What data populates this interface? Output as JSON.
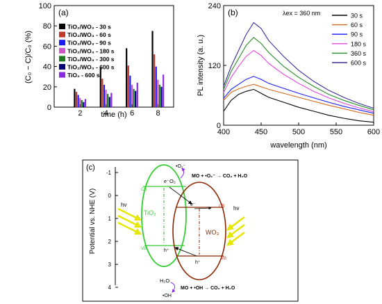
{
  "chart_data": [
    {
      "panel": "(a)",
      "type": "bar",
      "xlabel": "time (h)",
      "ylabel": "(C₀ − C)/C₀ (%)",
      "ylim": [
        0,
        100
      ],
      "categories": [
        "2",
        "4",
        "6",
        "8"
      ],
      "yticks": [
        "0",
        "20",
        "40",
        "60",
        "80",
        "100"
      ],
      "legend_position": "top-left",
      "series": [
        {
          "name": "TiO₂/WO₃ - 30 s",
          "color": "#000000",
          "values": [
            18,
            39,
            58,
            75
          ]
        },
        {
          "name": "TiO₂/WO₃ - 60 s",
          "color": "#c0392b",
          "values": [
            15,
            28,
            41,
            52
          ]
        },
        {
          "name": "TiO₂/WO₃ - 90 s",
          "color": "#1a1aff",
          "values": [
            12,
            22,
            31,
            40
          ]
        },
        {
          "name": "TiO₂/WO₃ - 180 s",
          "color": "#cc55cc",
          "values": [
            9,
            17,
            22,
            27
          ]
        },
        {
          "name": "TiO₂/WO₃ - 300 s",
          "color": "#1e7a1e",
          "values": [
            7,
            13,
            18,
            22
          ]
        },
        {
          "name": "TiO₂/WO₃ - 600 s",
          "color": "#00007a",
          "values": [
            5,
            10,
            16,
            20
          ]
        },
        {
          "name": "TiO₂ - 600 s",
          "color": "#8a2be2",
          "values": [
            8,
            14,
            24,
            32
          ]
        }
      ]
    },
    {
      "panel": "(b)",
      "type": "line",
      "xlabel": "wavelength (nm)",
      "ylabel": "PL intensity (a. u.)",
      "annotation": "λex = 360 nm",
      "xlim": [
        400,
        600
      ],
      "ylim": [
        0,
        240
      ],
      "xticks": [
        "400",
        "450",
        "500",
        "550",
        "600"
      ],
      "yticks": [
        "0",
        "120",
        "240"
      ],
      "legend_position": "top-right",
      "series": [
        {
          "name": "30 s",
          "color": "#000000",
          "points": [
            [
              400,
              28
            ],
            [
              410,
              50
            ],
            [
              420,
              62
            ],
            [
              430,
              68
            ],
            [
              440,
              72
            ],
            [
              450,
              64
            ],
            [
              460,
              56
            ],
            [
              480,
              46
            ],
            [
              500,
              36
            ],
            [
              520,
              28
            ],
            [
              540,
              20
            ],
            [
              560,
              14
            ],
            [
              580,
              9
            ],
            [
              600,
              6
            ]
          ]
        },
        {
          "name": "60 s",
          "color": "#d2691e",
          "points": [
            [
              400,
              50
            ],
            [
              410,
              66
            ],
            [
              420,
              73
            ],
            [
              430,
              78
            ],
            [
              440,
              82
            ],
            [
              450,
              77
            ],
            [
              460,
              72
            ],
            [
              480,
              64
            ],
            [
              500,
              56
            ],
            [
              520,
              48
            ],
            [
              540,
              40
            ],
            [
              560,
              33
            ],
            [
              580,
              26
            ],
            [
              600,
              20
            ]
          ]
        },
        {
          "name": "90 s",
          "color": "#1a1aff",
          "points": [
            [
              400,
              54
            ],
            [
              410,
              72
            ],
            [
              420,
              82
            ],
            [
              430,
              92
            ],
            [
              440,
              98
            ],
            [
              450,
              92
            ],
            [
              460,
              84
            ],
            [
              480,
              74
            ],
            [
              500,
              64
            ],
            [
              520,
              55
            ],
            [
              540,
              46
            ],
            [
              560,
              38
            ],
            [
              580,
              31
            ],
            [
              600,
              24
            ]
          ]
        },
        {
          "name": "180 s",
          "color": "#dd44dd",
          "points": [
            [
              400,
              66
            ],
            [
              410,
              96
            ],
            [
              420,
              118
            ],
            [
              430,
              138
            ],
            [
              440,
              150
            ],
            [
              450,
              140
            ],
            [
              460,
              124
            ],
            [
              480,
              102
            ],
            [
              500,
              84
            ],
            [
              520,
              68
            ],
            [
              540,
              55
            ],
            [
              560,
              44
            ],
            [
              580,
              35
            ],
            [
              600,
              27
            ]
          ]
        },
        {
          "name": "360 s",
          "color": "#228b22",
          "points": [
            [
              400,
              72
            ],
            [
              410,
              108
            ],
            [
              420,
              134
            ],
            [
              430,
              160
            ],
            [
              440,
              176
            ],
            [
              450,
              164
            ],
            [
              460,
              146
            ],
            [
              480,
              118
            ],
            [
              500,
              96
            ],
            [
              520,
              78
            ],
            [
              540,
              62
            ],
            [
              560,
              50
            ],
            [
              580,
              40
            ],
            [
              600,
              31
            ]
          ]
        },
        {
          "name": "600 s",
          "color": "#3a2a9a",
          "points": [
            [
              400,
              78
            ],
            [
              410,
              118
            ],
            [
              420,
              150
            ],
            [
              430,
              182
            ],
            [
              440,
              206
            ],
            [
              450,
              194
            ],
            [
              460,
              170
            ],
            [
              480,
              138
            ],
            [
              500,
              110
            ],
            [
              520,
              88
            ],
            [
              540,
              70
            ],
            [
              560,
              56
            ],
            [
              580,
              44
            ],
            [
              600,
              34
            ]
          ]
        }
      ]
    }
  ],
  "diagram": {
    "panel": "(c)",
    "ylabel": "Potential vs. NHE (V)",
    "yticks": [
      "-1",
      "0",
      "1",
      "2",
      "3",
      "4"
    ],
    "tio2_label": "TiO₂",
    "wo3_label": "WO₃",
    "cb_label": "CB",
    "vb_label": "VB",
    "hv_label": "hv",
    "electron": "e⁻",
    "hole": "h⁺",
    "o2": "O₂",
    "superoxide": "•O₂⁻",
    "reaction_top": "MO + •O₂⁻ → CO₂ + H₂O",
    "h2o": "H₂O",
    "hydroxyl": "•OH",
    "reaction_bottom": "MO + •OH → CO₂ + H₂O",
    "colors": {
      "tio2": "#33cc33",
      "wo3": "#8b2500",
      "light": "#e6e600"
    }
  }
}
